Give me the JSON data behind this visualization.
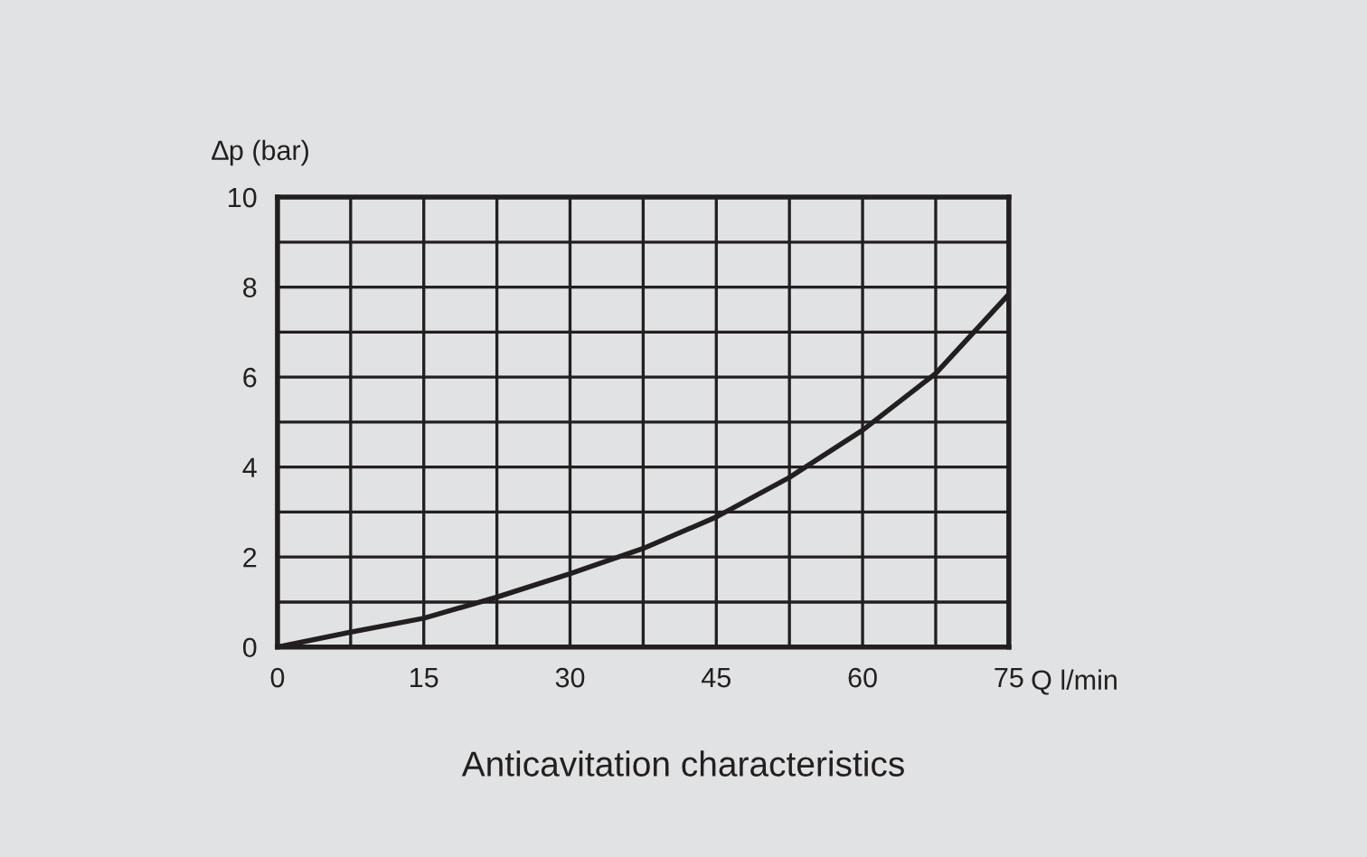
{
  "chart_data": {
    "type": "line",
    "title": "Anticavitation characteristics",
    "xlabel": "Q l/min",
    "ylabel": "∆p (bar)",
    "x": [
      0,
      7.5,
      15,
      22.5,
      30,
      37.5,
      45,
      52.5,
      60,
      67.5,
      75
    ],
    "series": [
      {
        "color": "#231f20",
        "values": [
          0,
          0.33,
          0.64,
          1.11,
          1.63,
          2.19,
          2.89,
          3.77,
          4.82,
          6.08,
          7.84
        ]
      }
    ],
    "xlim": [
      0,
      75
    ],
    "ylim": [
      0,
      10
    ],
    "xticks": [
      0,
      {
        "value": 7.5,
        "label": null
      },
      15,
      {
        "value": 22.5,
        "label": null
      },
      30,
      {
        "value": 37.5,
        "label": null
      },
      45,
      {
        "value": 52.5,
        "label": null
      },
      60,
      {
        "value": 67.5,
        "label": null
      },
      75
    ],
    "yticks": [
      0,
      {
        "value": 1,
        "label": null
      },
      2,
      {
        "value": 3,
        "label": null
      },
      4,
      {
        "value": 5,
        "label": null
      },
      6,
      {
        "value": 7,
        "label": null
      },
      8,
      {
        "value": 9,
        "label": null
      },
      10
    ],
    "grid": true,
    "marker": "none",
    "line_style": "solid"
  }
}
